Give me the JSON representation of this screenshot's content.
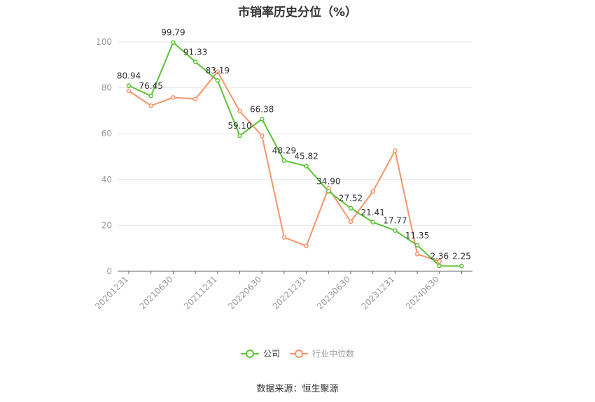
{
  "chart_data": {
    "type": "line",
    "title": "市销率历史分位（%）",
    "xlabel": "",
    "ylabel": "",
    "ylim": [
      0,
      100
    ],
    "yticks": [
      0,
      20,
      40,
      60,
      80,
      100
    ],
    "x": [
      "20201231",
      "20210331",
      "20210630",
      "20210930",
      "20211231",
      "20220331",
      "20220630",
      "20220930",
      "20221231",
      "20230331",
      "20230630",
      "20230930",
      "20231231",
      "20240331",
      "20240630",
      "20240930"
    ],
    "xtick_labels": [
      "20201231",
      "20210630",
      "20211231",
      "20220630",
      "20221231",
      "20230630",
      "20231231",
      "20240630"
    ],
    "series": [
      {
        "name": "公司",
        "color": "#5bc236",
        "values": [
          80.94,
          76.45,
          99.79,
          91.33,
          83.19,
          59.1,
          66.38,
          48.29,
          45.82,
          34.9,
          27.52,
          21.41,
          17.77,
          11.35,
          2.36,
          2.25
        ],
        "labels": [
          "80.94",
          "76.45",
          "99.79",
          "91.33",
          "83.19",
          "59.10",
          "66.38",
          "48.29",
          "45.82",
          "34.90",
          "27.52",
          "21.41",
          "17.77",
          "11.35",
          "2.36",
          "2.25"
        ]
      },
      {
        "name": "行业中位数",
        "color": "#f5946a",
        "values": [
          78.7,
          72.2,
          75.8,
          75.1,
          87.0,
          69.8,
          59.1,
          14.8,
          11.0,
          36.2,
          21.6,
          34.8,
          52.6,
          7.5,
          4.3,
          null
        ]
      }
    ],
    "grid": true,
    "legend_position": "bottom-center"
  },
  "source_text": "数据来源：恒生聚源"
}
